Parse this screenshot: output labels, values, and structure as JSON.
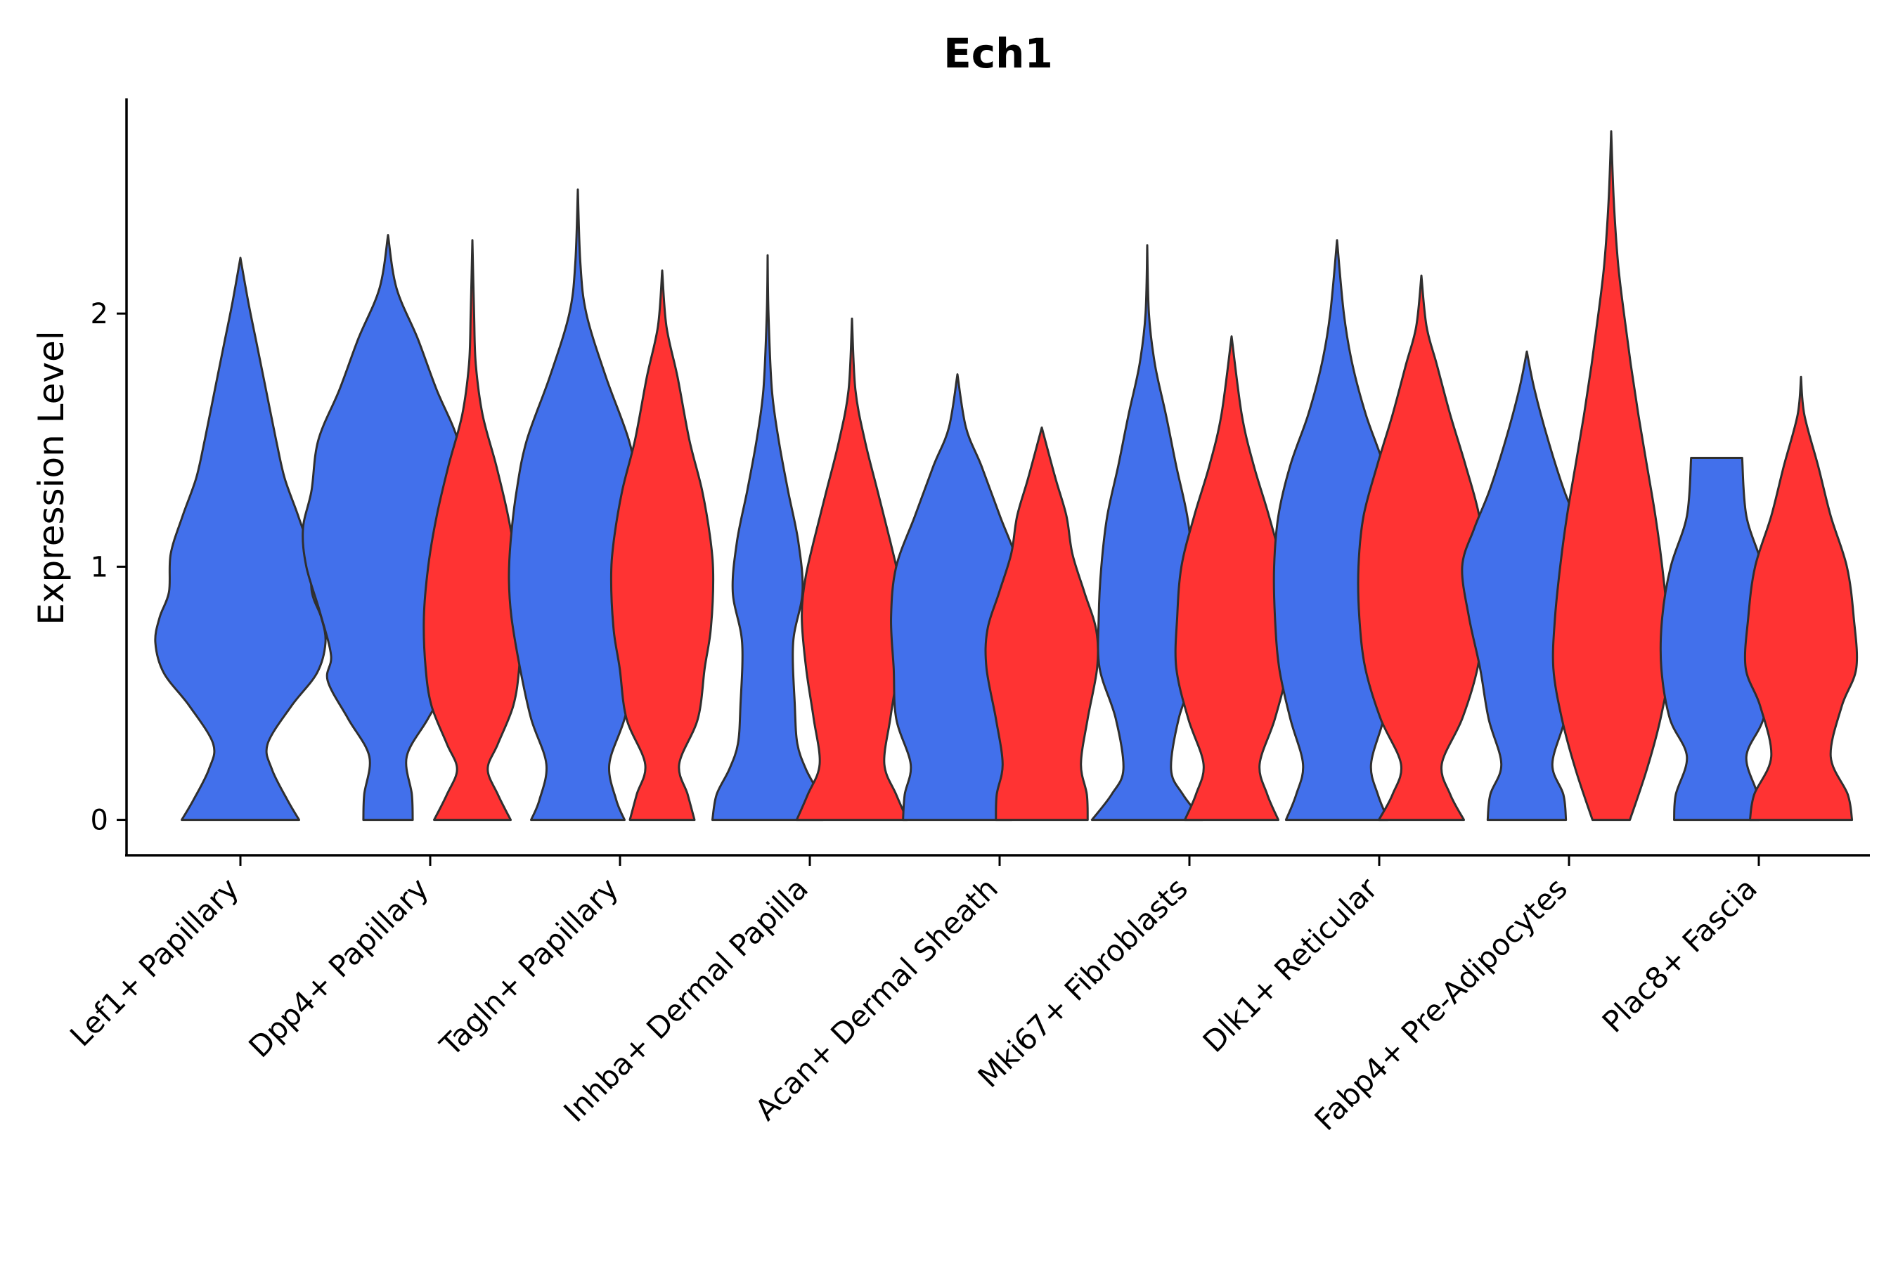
{
  "chart_data": {
    "type": "violin",
    "title": "Ech1",
    "xlabel": "",
    "ylabel": "Expression Level",
    "ylim": [
      -0.14,
      2.85
    ],
    "yticks": [
      0,
      1,
      2
    ],
    "grid": false,
    "legend": "none",
    "categories": [
      "Lef1+ Papillary",
      "Dpp4+ Papillary",
      "Tagln+ Papillary",
      "Inhba+ Dermal Papilla",
      "Acan+ Dermal Sheath",
      "Mki67+ Fibroblasts",
      "Dlk1+ Reticular",
      "Fabp4+ Pre-Adipocytes",
      "Plac8+ Fascia"
    ],
    "colors": {
      "blue": "#4270EB",
      "red": "#FF3333",
      "outline": "#2F2F2F"
    },
    "violins": [
      {
        "category": 0,
        "side": "single",
        "color": "blue",
        "min": 0,
        "max": 2.22,
        "profile": [
          [
            0,
            0.69
          ],
          [
            0.08,
            0.55
          ],
          [
            0.2,
            0.37
          ],
          [
            0.3,
            0.32
          ],
          [
            0.45,
            0.6
          ],
          [
            0.58,
            0.9
          ],
          [
            0.7,
            1.0
          ],
          [
            0.8,
            0.95
          ],
          [
            0.9,
            0.84
          ],
          [
            1.05,
            0.82
          ],
          [
            1.2,
            0.68
          ],
          [
            1.35,
            0.52
          ],
          [
            1.5,
            0.42
          ],
          [
            1.7,
            0.3
          ],
          [
            1.9,
            0.18
          ],
          [
            2.05,
            0.09
          ],
          [
            2.22,
            0.0
          ]
        ]
      },
      {
        "category": 1,
        "side": "left",
        "color": "blue",
        "min": 0,
        "max": 2.31,
        "profile": [
          [
            0,
            0.29
          ],
          [
            0.1,
            0.28
          ],
          [
            0.25,
            0.22
          ],
          [
            0.4,
            0.47
          ],
          [
            0.55,
            0.71
          ],
          [
            0.65,
            0.67
          ],
          [
            0.82,
            0.8
          ],
          [
            1.0,
            0.96
          ],
          [
            1.15,
            1.0
          ],
          [
            1.3,
            0.9
          ],
          [
            1.5,
            0.82
          ],
          [
            1.7,
            0.57
          ],
          [
            1.9,
            0.35
          ],
          [
            2.1,
            0.1
          ],
          [
            2.31,
            0.0
          ]
        ]
      },
      {
        "category": 1,
        "side": "right",
        "color": "red",
        "min": 0,
        "max": 2.29,
        "profile": [
          [
            0,
            0.45
          ],
          [
            0.1,
            0.3
          ],
          [
            0.2,
            0.18
          ],
          [
            0.3,
            0.3
          ],
          [
            0.45,
            0.48
          ],
          [
            0.6,
            0.55
          ],
          [
            0.8,
            0.57
          ],
          [
            1.0,
            0.52
          ],
          [
            1.2,
            0.42
          ],
          [
            1.4,
            0.28
          ],
          [
            1.6,
            0.12
          ],
          [
            1.8,
            0.04
          ],
          [
            2.0,
            0.02
          ],
          [
            2.29,
            0.0
          ]
        ]
      },
      {
        "category": 2,
        "side": "left",
        "color": "blue",
        "min": 0,
        "max": 2.49,
        "profile": [
          [
            0,
            0.55
          ],
          [
            0.08,
            0.45
          ],
          [
            0.22,
            0.37
          ],
          [
            0.4,
            0.55
          ],
          [
            0.6,
            0.68
          ],
          [
            0.8,
            0.78
          ],
          [
            0.95,
            0.81
          ],
          [
            1.1,
            0.79
          ],
          [
            1.3,
            0.72
          ],
          [
            1.5,
            0.6
          ],
          [
            1.75,
            0.33
          ],
          [
            2.0,
            0.1
          ],
          [
            2.2,
            0.03
          ],
          [
            2.49,
            0.0
          ]
        ]
      },
      {
        "category": 2,
        "side": "right",
        "color": "red",
        "min": 0,
        "max": 2.17,
        "profile": [
          [
            0,
            0.38
          ],
          [
            0.1,
            0.3
          ],
          [
            0.22,
            0.2
          ],
          [
            0.4,
            0.42
          ],
          [
            0.6,
            0.5
          ],
          [
            0.75,
            0.57
          ],
          [
            0.95,
            0.6
          ],
          [
            1.1,
            0.57
          ],
          [
            1.3,
            0.47
          ],
          [
            1.5,
            0.32
          ],
          [
            1.75,
            0.18
          ],
          [
            1.95,
            0.05
          ],
          [
            2.17,
            0.0
          ]
        ]
      },
      {
        "category": 3,
        "side": "left",
        "color": "blue",
        "min": 0,
        "max": 2.23,
        "profile": [
          [
            0,
            0.65
          ],
          [
            0.1,
            0.6
          ],
          [
            0.2,
            0.45
          ],
          [
            0.3,
            0.35
          ],
          [
            0.45,
            0.32
          ],
          [
            0.7,
            0.3
          ],
          [
            0.9,
            0.41
          ],
          [
            1.1,
            0.36
          ],
          [
            1.3,
            0.24
          ],
          [
            1.5,
            0.13
          ],
          [
            1.7,
            0.05
          ],
          [
            2.0,
            0.01
          ],
          [
            2.23,
            0.0
          ]
        ]
      },
      {
        "category": 3,
        "side": "right",
        "color": "red",
        "min": 0,
        "max": 1.98,
        "profile": [
          [
            0,
            0.65
          ],
          [
            0.1,
            0.52
          ],
          [
            0.22,
            0.38
          ],
          [
            0.4,
            0.45
          ],
          [
            0.6,
            0.54
          ],
          [
            0.8,
            0.59
          ],
          [
            0.95,
            0.55
          ],
          [
            1.1,
            0.45
          ],
          [
            1.3,
            0.3
          ],
          [
            1.5,
            0.15
          ],
          [
            1.7,
            0.04
          ],
          [
            1.98,
            0.0
          ]
        ]
      },
      {
        "category": 4,
        "side": "left",
        "color": "blue",
        "min": 0,
        "max": 1.76,
        "profile": [
          [
            0,
            0.64
          ],
          [
            0.1,
            0.62
          ],
          [
            0.22,
            0.55
          ],
          [
            0.4,
            0.72
          ],
          [
            0.6,
            0.75
          ],
          [
            0.8,
            0.78
          ],
          [
            1.0,
            0.72
          ],
          [
            1.2,
            0.5
          ],
          [
            1.4,
            0.28
          ],
          [
            1.55,
            0.1
          ],
          [
            1.76,
            0.0
          ]
        ]
      },
      {
        "category": 4,
        "side": "right",
        "color": "red",
        "min": 0,
        "max": 1.55,
        "profile": [
          [
            0,
            0.54
          ],
          [
            0.1,
            0.53
          ],
          [
            0.22,
            0.46
          ],
          [
            0.4,
            0.54
          ],
          [
            0.6,
            0.65
          ],
          [
            0.75,
            0.64
          ],
          [
            0.9,
            0.5
          ],
          [
            1.05,
            0.36
          ],
          [
            1.2,
            0.29
          ],
          [
            1.35,
            0.16
          ],
          [
            1.55,
            0.0
          ]
        ]
      },
      {
        "category": 5,
        "side": "left",
        "color": "blue",
        "min": 0,
        "max": 2.27,
        "profile": [
          [
            0,
            0.65
          ],
          [
            0.1,
            0.42
          ],
          [
            0.2,
            0.28
          ],
          [
            0.4,
            0.37
          ],
          [
            0.6,
            0.56
          ],
          [
            0.8,
            0.57
          ],
          [
            1.0,
            0.54
          ],
          [
            1.2,
            0.47
          ],
          [
            1.4,
            0.34
          ],
          [
            1.6,
            0.22
          ],
          [
            1.8,
            0.09
          ],
          [
            2.0,
            0.02
          ],
          [
            2.27,
            0.0
          ]
        ]
      },
      {
        "category": 5,
        "side": "right",
        "color": "red",
        "min": 0,
        "max": 1.91,
        "profile": [
          [
            0,
            0.55
          ],
          [
            0.1,
            0.42
          ],
          [
            0.22,
            0.33
          ],
          [
            0.4,
            0.51
          ],
          [
            0.6,
            0.65
          ],
          [
            0.8,
            0.64
          ],
          [
            1.0,
            0.59
          ],
          [
            1.2,
            0.44
          ],
          [
            1.4,
            0.26
          ],
          [
            1.6,
            0.12
          ],
          [
            1.91,
            0.0
          ]
        ]
      },
      {
        "category": 6,
        "side": "left",
        "color": "blue",
        "min": 0,
        "max": 2.29,
        "profile": [
          [
            0,
            0.6
          ],
          [
            0.1,
            0.48
          ],
          [
            0.22,
            0.4
          ],
          [
            0.4,
            0.55
          ],
          [
            0.6,
            0.68
          ],
          [
            0.8,
            0.73
          ],
          [
            1.0,
            0.74
          ],
          [
            1.2,
            0.69
          ],
          [
            1.4,
            0.55
          ],
          [
            1.6,
            0.34
          ],
          [
            1.8,
            0.18
          ],
          [
            2.0,
            0.08
          ],
          [
            2.29,
            0.0
          ]
        ]
      },
      {
        "category": 6,
        "side": "right",
        "color": "red",
        "min": 0,
        "max": 2.15,
        "profile": [
          [
            0,
            0.5
          ],
          [
            0.1,
            0.34
          ],
          [
            0.22,
            0.24
          ],
          [
            0.4,
            0.48
          ],
          [
            0.6,
            0.66
          ],
          [
            0.8,
            0.73
          ],
          [
            1.0,
            0.74
          ],
          [
            1.2,
            0.68
          ],
          [
            1.4,
            0.52
          ],
          [
            1.6,
            0.34
          ],
          [
            1.8,
            0.18
          ],
          [
            1.95,
            0.06
          ],
          [
            2.15,
            0.0
          ]
        ]
      },
      {
        "category": 7,
        "side": "left",
        "color": "blue",
        "min": 0,
        "max": 1.85,
        "profile": [
          [
            0,
            0.46
          ],
          [
            0.1,
            0.43
          ],
          [
            0.22,
            0.3
          ],
          [
            0.4,
            0.45
          ],
          [
            0.6,
            0.55
          ],
          [
            0.8,
            0.68
          ],
          [
            1.0,
            0.76
          ],
          [
            1.15,
            0.62
          ],
          [
            1.3,
            0.44
          ],
          [
            1.5,
            0.25
          ],
          [
            1.7,
            0.09
          ],
          [
            1.85,
            0.0
          ]
        ]
      },
      {
        "category": 7,
        "side": "right",
        "color": "red",
        "min": 0,
        "max": 2.72,
        "profile": [
          [
            0,
            0.22
          ],
          [
            0.2,
            0.42
          ],
          [
            0.4,
            0.58
          ],
          [
            0.6,
            0.68
          ],
          [
            0.8,
            0.66
          ],
          [
            1.0,
            0.6
          ],
          [
            1.2,
            0.52
          ],
          [
            1.4,
            0.42
          ],
          [
            1.6,
            0.32
          ],
          [
            1.8,
            0.23
          ],
          [
            2.0,
            0.15
          ],
          [
            2.2,
            0.08
          ],
          [
            2.45,
            0.03
          ],
          [
            2.72,
            0.0
          ]
        ]
      },
      {
        "category": 8,
        "side": "left",
        "color": "blue",
        "min": 0,
        "max": 1.43,
        "profile": [
          [
            0,
            0.5
          ],
          [
            0.1,
            0.48
          ],
          [
            0.25,
            0.35
          ],
          [
            0.4,
            0.55
          ],
          [
            0.6,
            0.65
          ],
          [
            0.8,
            0.64
          ],
          [
            1.0,
            0.54
          ],
          [
            1.2,
            0.35
          ],
          [
            1.43,
            0.3
          ]
        ]
      },
      {
        "category": 8,
        "side": "right",
        "color": "red",
        "min": 0,
        "max": 1.75,
        "profile": [
          [
            0,
            0.6
          ],
          [
            0.1,
            0.55
          ],
          [
            0.25,
            0.35
          ],
          [
            0.45,
            0.48
          ],
          [
            0.6,
            0.65
          ],
          [
            0.8,
            0.62
          ],
          [
            1.0,
            0.54
          ],
          [
            1.2,
            0.35
          ],
          [
            1.4,
            0.2
          ],
          [
            1.6,
            0.04
          ],
          [
            1.75,
            0.0
          ]
        ]
      }
    ]
  }
}
